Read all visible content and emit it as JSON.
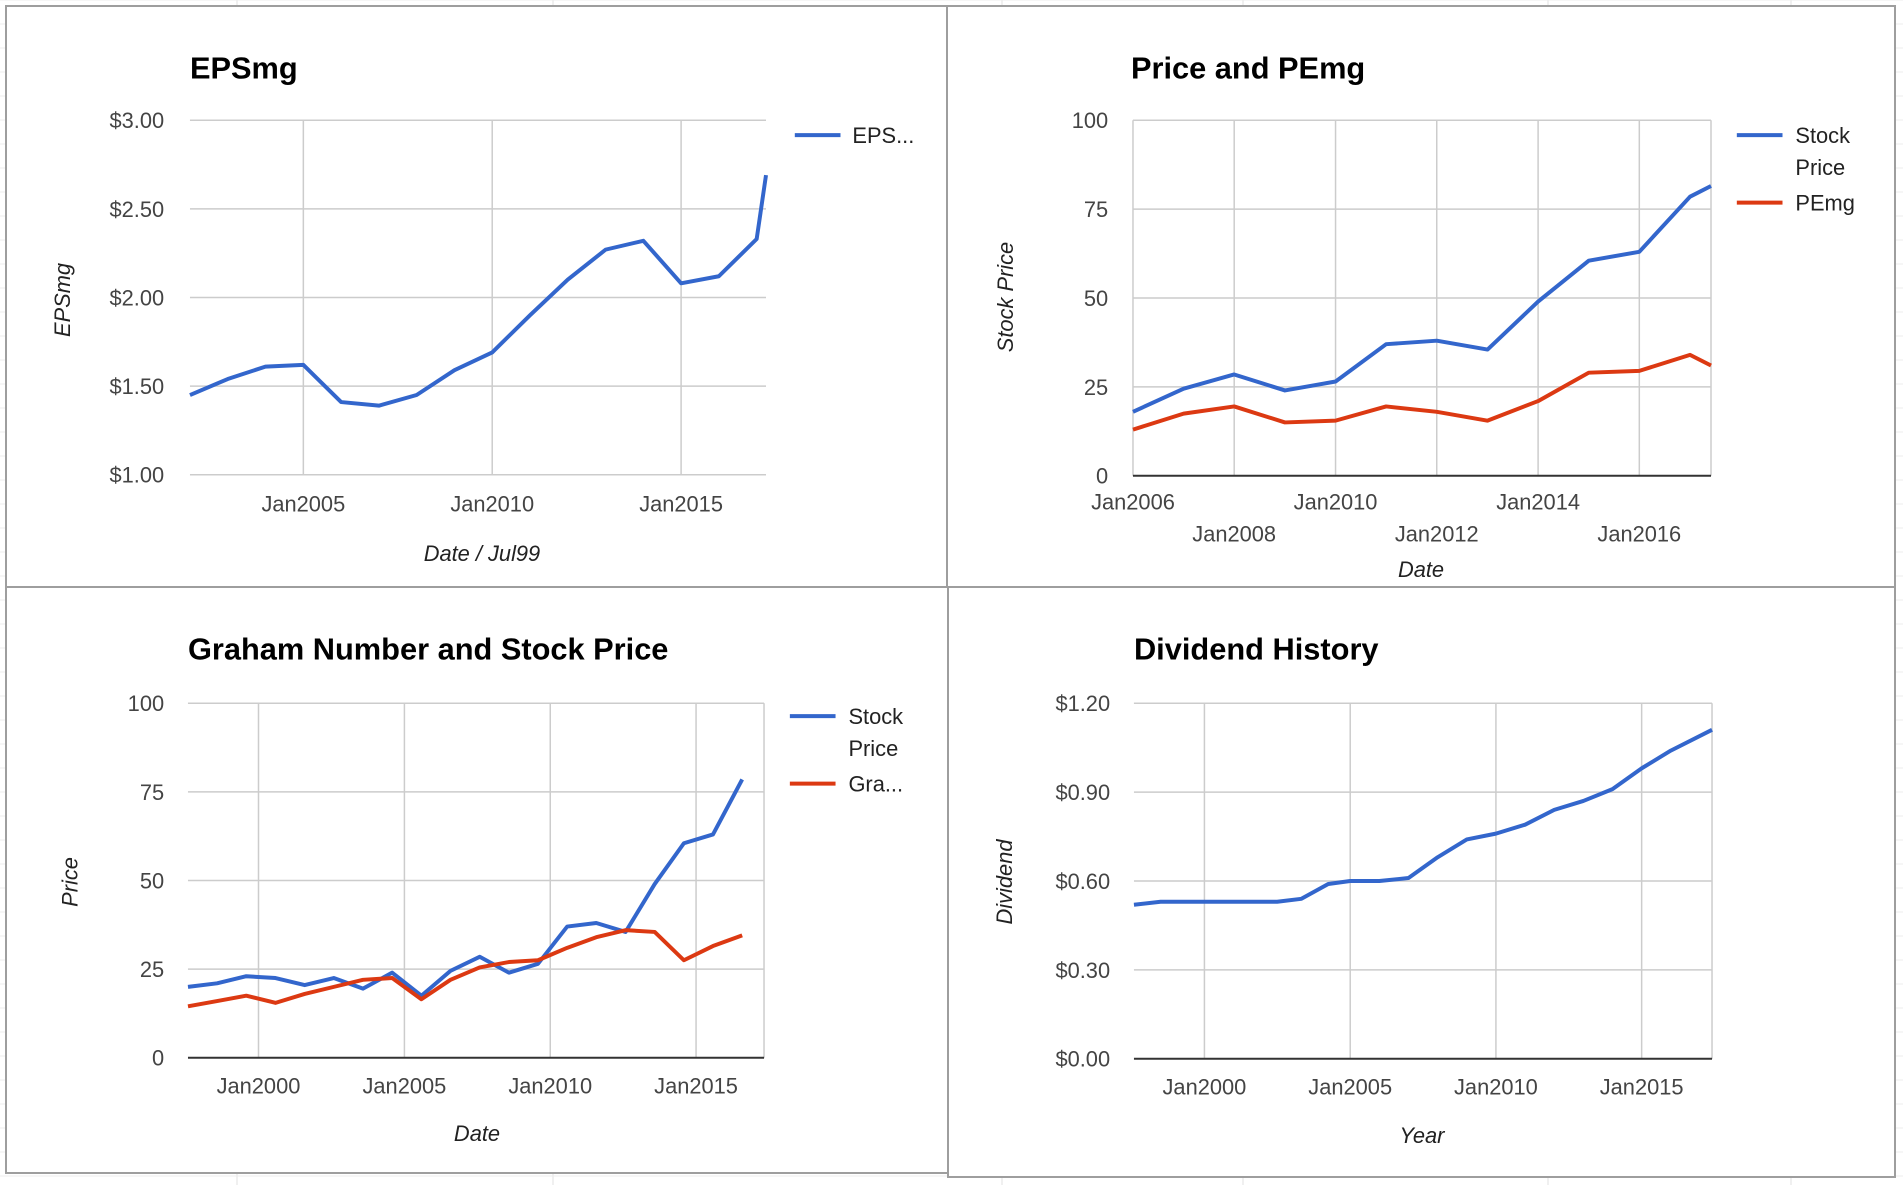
{
  "colors": {
    "blue": "#3366cc",
    "red": "#dc3912",
    "grid": "#cccccc",
    "panel_border": "#9e9e9e"
  },
  "chart_data": [
    {
      "id": "c1",
      "type": "line",
      "title": "EPSmg",
      "xlabel": "Date / Jul99",
      "ylabel": "EPSmg",
      "x_scale": "time",
      "xlim": [
        "2002-01-01",
        "2017-04-01"
      ],
      "xticks": [
        {
          "label": "Jan2005",
          "date": "2005-01-01"
        },
        {
          "label": "Jan2010",
          "date": "2010-01-01"
        },
        {
          "label": "Jan2015",
          "date": "2015-01-01"
        }
      ],
      "ylim": [
        1.0,
        3.0
      ],
      "yticks": [
        {
          "label": "$3.00",
          "value": 3.0
        },
        {
          "label": "$2.50",
          "value": 2.5
        },
        {
          "label": "$2.00",
          "value": 2.0
        },
        {
          "label": "$1.50",
          "value": 1.5
        },
        {
          "label": "$1.00",
          "value": 1.0
        }
      ],
      "grid": true,
      "legend_position": "right",
      "series": [
        {
          "name": "EPS...",
          "color": "#3366cc",
          "points": [
            [
              "2002-01-01",
              1.45
            ],
            [
              "2003-01-01",
              1.54
            ],
            [
              "2004-01-01",
              1.61
            ],
            [
              "2005-01-01",
              1.62
            ],
            [
              "2006-01-01",
              1.41
            ],
            [
              "2007-01-01",
              1.39
            ],
            [
              "2008-01-01",
              1.45
            ],
            [
              "2009-01-01",
              1.59
            ],
            [
              "2010-01-01",
              1.69
            ],
            [
              "2011-01-01",
              1.9
            ],
            [
              "2012-01-01",
              2.1
            ],
            [
              "2013-01-01",
              2.27
            ],
            [
              "2014-01-01",
              2.32
            ],
            [
              "2015-01-01",
              2.08
            ],
            [
              "2016-01-01",
              2.12
            ],
            [
              "2017-01-01",
              2.33
            ],
            [
              "2017-04-01",
              2.69
            ]
          ]
        }
      ]
    },
    {
      "id": "c2",
      "type": "line",
      "title": "Price and PEmg",
      "xlabel": "Date",
      "ylabel": "Stock Price",
      "x_scale": "time",
      "xlim": [
        "2006-01-01",
        "2017-06-01"
      ],
      "xticks": [
        {
          "label": "Jan2006",
          "date": "2006-01-01",
          "row": 0
        },
        {
          "label": "Jan2008",
          "date": "2008-01-01",
          "row": 1
        },
        {
          "label": "Jan2010",
          "date": "2010-01-01",
          "row": 0
        },
        {
          "label": "Jan2012",
          "date": "2012-01-01",
          "row": 1
        },
        {
          "label": "Jan2014",
          "date": "2014-01-01",
          "row": 0
        },
        {
          "label": "Jan2016",
          "date": "2016-01-01",
          "row": 1
        }
      ],
      "ylim": [
        0,
        100
      ],
      "yticks": [
        {
          "label": "100",
          "value": 100
        },
        {
          "label": "75",
          "value": 75
        },
        {
          "label": "50",
          "value": 50
        },
        {
          "label": "25",
          "value": 25
        },
        {
          "label": "0",
          "value": 0
        }
      ],
      "grid": true,
      "legend_position": "right",
      "series": [
        {
          "name": "Stock Price",
          "color": "#3366cc",
          "points": [
            [
              "2006-01-01",
              18
            ],
            [
              "2007-01-01",
              24.5
            ],
            [
              "2008-01-01",
              28.5
            ],
            [
              "2009-01-01",
              24
            ],
            [
              "2010-01-01",
              26.5
            ],
            [
              "2011-01-01",
              37
            ],
            [
              "2012-01-01",
              38
            ],
            [
              "2013-01-01",
              35.5
            ],
            [
              "2014-01-01",
              49
            ],
            [
              "2015-01-01",
              60.5
            ],
            [
              "2016-01-01",
              63
            ],
            [
              "2017-01-01",
              78.5
            ],
            [
              "2017-06-01",
              81.5
            ]
          ]
        },
        {
          "name": "PEmg",
          "color": "#dc3912",
          "points": [
            [
              "2006-01-01",
              13
            ],
            [
              "2007-01-01",
              17.5
            ],
            [
              "2008-01-01",
              19.5
            ],
            [
              "2009-01-01",
              15
            ],
            [
              "2010-01-01",
              15.5
            ],
            [
              "2011-01-01",
              19.5
            ],
            [
              "2012-01-01",
              18
            ],
            [
              "2013-01-01",
              15.5
            ],
            [
              "2014-01-01",
              21
            ],
            [
              "2015-01-01",
              29
            ],
            [
              "2016-01-01",
              29.5
            ],
            [
              "2017-01-01",
              34
            ],
            [
              "2017-06-01",
              31
            ]
          ]
        }
      ]
    },
    {
      "id": "c3",
      "type": "line",
      "title": "Graham Number and Stock Price",
      "xlabel": "Date",
      "ylabel": "Price",
      "x_scale": "time",
      "xlim": [
        "1997-08-01",
        "2017-05-01"
      ],
      "xticks": [
        {
          "label": "Jan2000",
          "date": "2000-01-01"
        },
        {
          "label": "Jan2005",
          "date": "2005-01-01"
        },
        {
          "label": "Jan2010",
          "date": "2010-01-01"
        },
        {
          "label": "Jan2015",
          "date": "2015-01-01"
        }
      ],
      "ylim": [
        0,
        100
      ],
      "yticks": [
        {
          "label": "100",
          "value": 100
        },
        {
          "label": "75",
          "value": 75
        },
        {
          "label": "50",
          "value": 50
        },
        {
          "label": "25",
          "value": 25
        },
        {
          "label": "0",
          "value": 0
        }
      ],
      "grid": true,
      "legend_position": "right",
      "series": [
        {
          "name": "Stock Price",
          "color": "#3366cc",
          "points": [
            [
              "1997-08-01",
              20
            ],
            [
              "1998-08-01",
              21
            ],
            [
              "1999-08-01",
              23
            ],
            [
              "2000-08-01",
              22.5
            ],
            [
              "2001-08-01",
              20.5
            ],
            [
              "2002-08-01",
              22.5
            ],
            [
              "2003-08-01",
              19.5
            ],
            [
              "2004-08-01",
              24
            ],
            [
              "2005-08-01",
              17.5
            ],
            [
              "2006-08-01",
              24.5
            ],
            [
              "2007-08-01",
              28.5
            ],
            [
              "2008-08-01",
              24
            ],
            [
              "2009-08-01",
              26.5
            ],
            [
              "2010-08-01",
              37
            ],
            [
              "2011-08-01",
              38
            ],
            [
              "2012-08-01",
              35.5
            ],
            [
              "2013-08-01",
              49
            ],
            [
              "2014-08-01",
              60.5
            ],
            [
              "2015-08-01",
              63
            ],
            [
              "2016-08-01",
              78.5
            ]
          ]
        },
        {
          "name": "Gra...",
          "color": "#dc3912",
          "points": [
            [
              "1997-08-01",
              14.5
            ],
            [
              "1998-08-01",
              16
            ],
            [
              "1999-08-01",
              17.5
            ],
            [
              "2000-08-01",
              15.5
            ],
            [
              "2001-08-01",
              18
            ],
            [
              "2002-08-01",
              20
            ],
            [
              "2003-08-01",
              22
            ],
            [
              "2004-08-01",
              22.5
            ],
            [
              "2005-08-01",
              16.5
            ],
            [
              "2006-08-01",
              22
            ],
            [
              "2007-08-01",
              25.5
            ],
            [
              "2008-08-01",
              27
            ],
            [
              "2009-08-01",
              27.5
            ],
            [
              "2010-08-01",
              31
            ],
            [
              "2011-08-01",
              34
            ],
            [
              "2012-08-01",
              36
            ],
            [
              "2013-08-01",
              35.5
            ],
            [
              "2014-08-01",
              27.5
            ],
            [
              "2015-08-01",
              31.5
            ],
            [
              "2016-08-01",
              34.5
            ]
          ]
        }
      ]
    },
    {
      "id": "c4",
      "type": "line",
      "title": "Dividend History",
      "xlabel": "Year",
      "ylabel": "Dividend",
      "x_scale": "time",
      "xlim": [
        "1997-08-01",
        "2017-06-01"
      ],
      "xticks": [
        {
          "label": "Jan2000",
          "date": "2000-01-01"
        },
        {
          "label": "Jan2005",
          "date": "2005-01-01"
        },
        {
          "label": "Jan2010",
          "date": "2010-01-01"
        },
        {
          "label": "Jan2015",
          "date": "2015-01-01"
        }
      ],
      "ylim": [
        0,
        1.2
      ],
      "yticks": [
        {
          "label": "$1.20",
          "value": 1.2
        },
        {
          "label": "$0.90",
          "value": 0.9
        },
        {
          "label": "$0.60",
          "value": 0.6
        },
        {
          "label": "$0.30",
          "value": 0.3
        },
        {
          "label": "$0.00",
          "value": 0.0
        }
      ],
      "grid": true,
      "legend_position": "none",
      "series": [
        {
          "name": "",
          "color": "#3366cc",
          "points": [
            [
              "1997-08-01",
              0.52
            ],
            [
              "1998-07-01",
              0.53
            ],
            [
              "1999-07-01",
              0.53
            ],
            [
              "2000-07-01",
              0.53
            ],
            [
              "2001-07-01",
              0.53
            ],
            [
              "2002-07-01",
              0.53
            ],
            [
              "2003-05-01",
              0.54
            ],
            [
              "2004-04-01",
              0.59
            ],
            [
              "2005-01-01",
              0.6
            ],
            [
              "2006-01-01",
              0.6
            ],
            [
              "2007-01-01",
              0.61
            ],
            [
              "2008-01-01",
              0.68
            ],
            [
              "2009-01-01",
              0.74
            ],
            [
              "2010-01-01",
              0.76
            ],
            [
              "2011-01-01",
              0.79
            ],
            [
              "2012-01-01",
              0.84
            ],
            [
              "2013-01-01",
              0.87
            ],
            [
              "2014-01-01",
              0.91
            ],
            [
              "2015-01-01",
              0.98
            ],
            [
              "2016-01-01",
              1.04
            ],
            [
              "2017-06-01",
              1.11
            ]
          ]
        }
      ]
    }
  ]
}
